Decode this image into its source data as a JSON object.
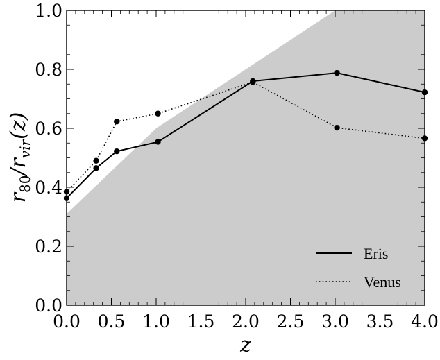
{
  "chart_data": {
    "type": "line",
    "xlabel": "z",
    "ylabel_main": "r",
    "ylabel_sub1": "80",
    "ylabel_mid": "/r",
    "ylabel_sub2": "vir",
    "ylabel_end": "(z)",
    "xlim": [
      0.0,
      4.0
    ],
    "ylim": [
      0.0,
      1.0
    ],
    "xticks": [
      "0.0",
      "0.5",
      "1.0",
      "1.5",
      "2.0",
      "2.5",
      "3.0",
      "3.5",
      "4.0"
    ],
    "yticks": [
      "0.0",
      "0.2",
      "0.4",
      "0.6",
      "0.8",
      "1.0"
    ],
    "shaded_region": {
      "boundary": [
        [
          0.0,
          0.31
        ],
        [
          1.0,
          0.6
        ],
        [
          3.0,
          1.0
        ]
      ],
      "color": "#cccccc"
    },
    "series": [
      {
        "name": "Eris",
        "style": "solid",
        "x": [
          0.0,
          0.33,
          0.56,
          1.02,
          2.08,
          3.02,
          4.0
        ],
        "y": [
          0.363,
          0.465,
          0.522,
          0.554,
          0.76,
          0.788,
          0.722
        ]
      },
      {
        "name": "Venus",
        "style": "dotted",
        "x": [
          0.0,
          0.33,
          0.56,
          1.02,
          2.08,
          3.02,
          4.0
        ],
        "y": [
          0.385,
          0.49,
          0.623,
          0.65,
          0.757,
          0.602,
          0.566
        ]
      }
    ],
    "legend_position": "lower-right",
    "grid": false
  }
}
